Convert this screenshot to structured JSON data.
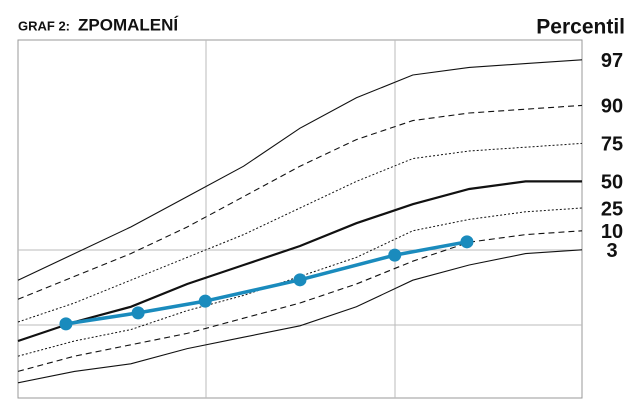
{
  "chart_data": {
    "type": "line",
    "title": "ZPOMALENÍ",
    "title_prefix": "GRAF 2:",
    "legend_title": "Percentil",
    "x": [
      0,
      10,
      20,
      30,
      40,
      50,
      60,
      70,
      80,
      90,
      100
    ],
    "xlim": [
      0,
      100
    ],
    "ylim": [
      0,
      100
    ],
    "series": [
      {
        "name": "97",
        "color": "#111111",
        "style": "solid",
        "values": [
          31,
          38,
          45,
          53,
          61,
          71,
          79,
          85,
          87,
          88,
          89
        ]
      },
      {
        "name": "90",
        "color": "#111111",
        "style": "dashed",
        "values": [
          26,
          32,
          38,
          45,
          53,
          61,
          68,
          73,
          75,
          76,
          77
        ]
      },
      {
        "name": "75",
        "color": "#111111",
        "style": "dotted",
        "values": [
          20,
          25,
          31,
          37,
          43,
          50,
          57,
          63,
          65,
          66,
          67
        ]
      },
      {
        "name": "50",
        "color": "#111111",
        "style": "bold",
        "values": [
          15,
          20,
          24,
          30,
          35,
          40,
          46,
          51,
          55,
          57,
          57
        ]
      },
      {
        "name": "25",
        "color": "#111111",
        "style": "dotted",
        "values": [
          11,
          15,
          18,
          23,
          27,
          32,
          37,
          44,
          47,
          49,
          50
        ]
      },
      {
        "name": "10",
        "color": "#111111",
        "style": "dashed",
        "values": [
          7,
          11,
          14,
          17,
          21,
          25,
          30,
          36,
          41,
          43,
          44
        ]
      },
      {
        "name": "3",
        "color": "#111111",
        "style": "solid",
        "values": [
          4,
          7,
          9,
          13,
          16,
          19,
          24,
          31,
          35,
          38,
          39
        ]
      }
    ],
    "measurements": {
      "color": "#1a8bbd",
      "x": [
        8.5,
        21.3,
        33.2,
        50,
        66.8,
        79.6
      ],
      "values": [
        19.5,
        22.4,
        25.5,
        31.1,
        37.6,
        41.1
      ]
    }
  }
}
